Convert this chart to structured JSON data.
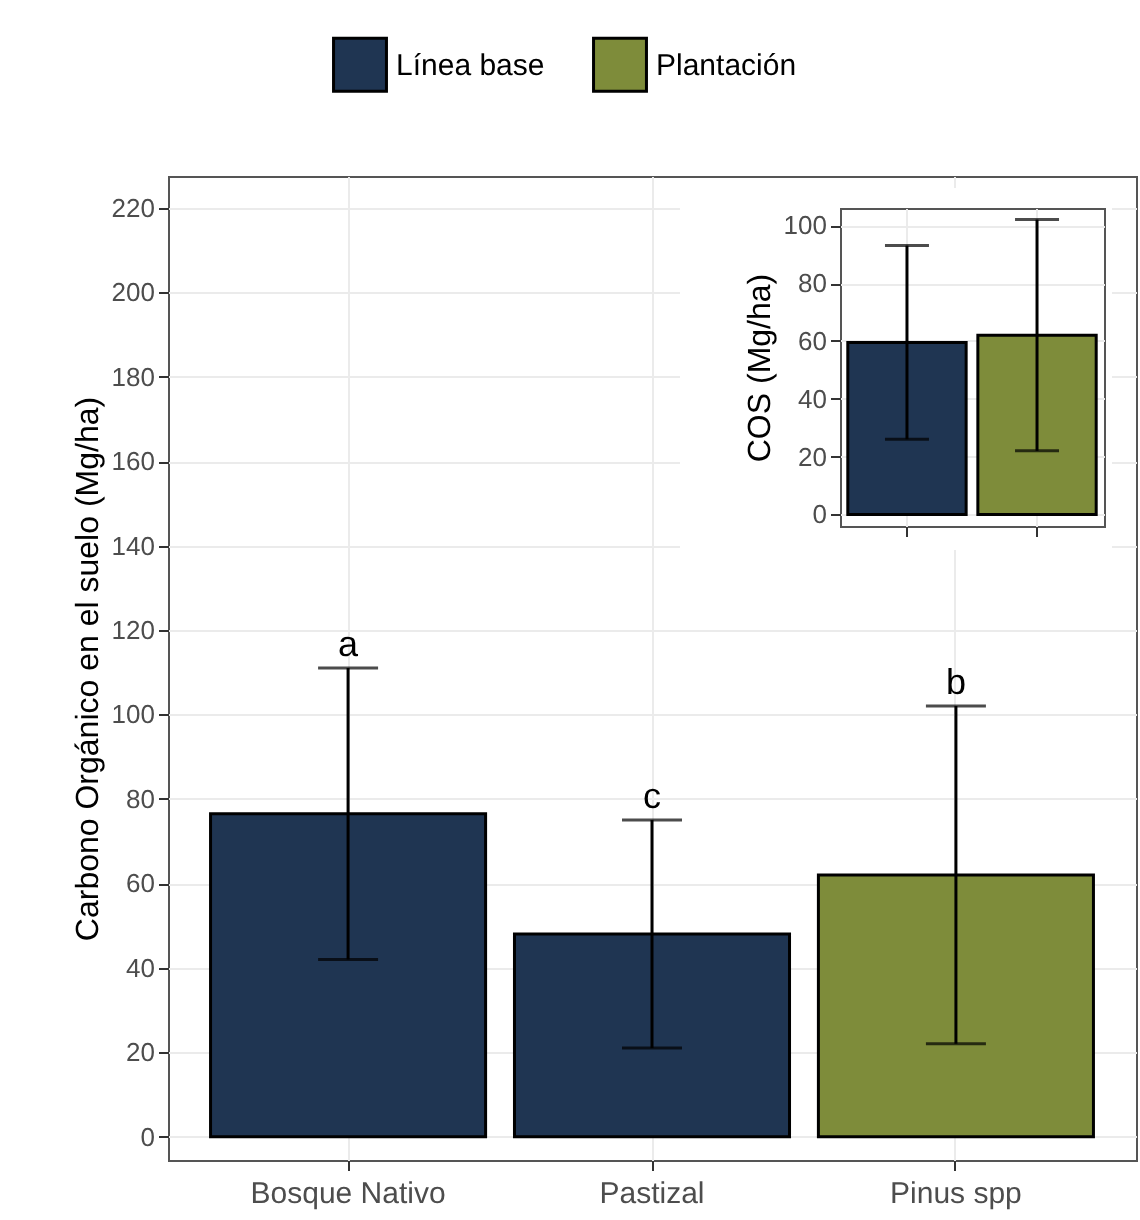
{
  "chart_data": [
    {
      "type": "bar",
      "ylabel": "Carbono Orgánico en el suelo (Mg/ha)",
      "categories": [
        "Bosque Nativo",
        "Pastizal",
        "Pinus spp"
      ],
      "series": [
        {
          "name": "Línea base",
          "color": "#1f3552",
          "values": [
            76.5,
            48,
            null
          ],
          "errors": [
            [
              42,
              111
            ],
            [
              21,
              75
            ],
            null
          ]
        },
        {
          "name": "Plantación",
          "color": "#7e8c3a",
          "values": [
            null,
            null,
            62
          ],
          "errors": [
            null,
            null,
            [
              22,
              102
            ]
          ]
        }
      ],
      "ylim": [
        -5.5,
        227.5
      ],
      "yticks": [
        0,
        20,
        40,
        60,
        80,
        100,
        120,
        140,
        160,
        180,
        200,
        220
      ],
      "grid": true,
      "legend": "top",
      "annotations": [
        "a",
        "c",
        "b"
      ]
    },
    {
      "type": "bar",
      "ylabel": "COS (Mg/ha)",
      "categories": [
        null,
        null
      ],
      "values": [
        59.5,
        62
      ],
      "colors": [
        "#1f3552",
        "#7e8c3a"
      ],
      "errors": [
        [
          26,
          93
        ],
        [
          22,
          102
        ]
      ],
      "ylim": [
        -4,
        106
      ],
      "yticks": [
        0,
        20,
        40,
        60,
        80,
        100
      ],
      "grid": true,
      "tick_labels": "y"
    }
  ]
}
